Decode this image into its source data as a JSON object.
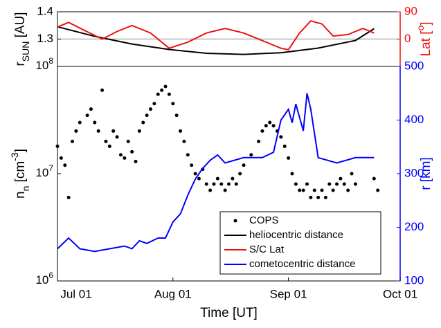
{
  "chart_data": [
    {
      "type": "line",
      "xlim": [
        0,
        92
      ],
      "ylim": [
        1.2,
        1.4
      ],
      "yticks": [
        1.3,
        1.4
      ],
      "y2lim": [
        -90,
        90
      ],
      "y2ticks": [
        0,
        90
      ],
      "y_label": {
        "text": "r",
        "sub": "SUN",
        "rest": " [AU]"
      },
      "y2_label": {
        "text": "Lat [",
        "sup": "o",
        "rest": "]"
      },
      "reference_line": 1.3,
      "series": [
        {
          "name": "heliocentric distance",
          "color": "#000000",
          "x": [
            0,
            10,
            20,
            30,
            40,
            50,
            60,
            70,
            80,
            85
          ],
          "values": [
            1.345,
            1.31,
            1.282,
            1.262,
            1.248,
            1.244,
            1.25,
            1.267,
            1.295,
            1.338
          ]
        },
        {
          "name": "S/C Lat",
          "color": "#ee1111",
          "axis": "y2",
          "x": [
            0,
            3,
            7,
            12,
            16,
            20,
            25,
            30,
            35,
            40,
            45,
            50,
            55,
            60,
            62,
            65,
            68,
            71,
            74,
            78,
            82,
            85
          ],
          "values": [
            40,
            55,
            30,
            0,
            25,
            45,
            20,
            -30,
            -10,
            20,
            35,
            20,
            -5,
            -30,
            -35,
            20,
            60,
            50,
            10,
            15,
            35,
            20
          ]
        }
      ]
    },
    {
      "type": "scatter",
      "xlim": [
        0,
        92
      ],
      "xticks": [
        {
          "value": 0,
          "label": "Jul 01"
        },
        {
          "value": 31,
          "label": "Aug 01"
        },
        {
          "value": 62,
          "label": "Sep 01"
        },
        {
          "value": 92,
          "label": "Oct 01"
        }
      ],
      "x_label": "Time [UT]",
      "log_y": true,
      "ylim": [
        1000000,
        100000000
      ],
      "yticks": [
        {
          "value": 1000000,
          "label": "10",
          "exponent": "6"
        },
        {
          "value": 10000000,
          "label": "10",
          "exponent": "7"
        },
        {
          "value": 100000000,
          "label": "10",
          "exponent": "8"
        }
      ],
      "y2lim": [
        100,
        500
      ],
      "y2ticks": [
        100,
        200,
        300,
        400,
        500
      ],
      "y_label": {
        "text": "n",
        "sub": "n",
        "rest": " [cm",
        "sup": "-3",
        "end": "]"
      },
      "y2_label": "r [km]",
      "series": [
        {
          "name": "COPS",
          "color": "#000000",
          "x": [
            0,
            1,
            2,
            3,
            4,
            5,
            6,
            8,
            9,
            10,
            11,
            12,
            13,
            14,
            15,
            16,
            17,
            18,
            19,
            20,
            21,
            22,
            23,
            24,
            25,
            26,
            27,
            28,
            29,
            30,
            31,
            32,
            33,
            34,
            35,
            36,
            37,
            38,
            39,
            40,
            41,
            42,
            43,
            44,
            45,
            46,
            47,
            48,
            49,
            50,
            52,
            54,
            55,
            56,
            57,
            58,
            59,
            60,
            61,
            62,
            63,
            64,
            65,
            66,
            67,
            68,
            69,
            70,
            71,
            72,
            73,
            74,
            75,
            76,
            77,
            78,
            79,
            80,
            85,
            86
          ],
          "values": [
            18000000.0,
            14000000.0,
            12000000.0,
            6000000.0,
            20000000.0,
            25000000.0,
            30000000.0,
            35000000.0,
            40000000.0,
            30000000.0,
            25000000.0,
            60000000.0,
            20000000.0,
            18000000.0,
            25000000.0,
            22000000.0,
            15000000.0,
            14000000.0,
            20000000.0,
            16000000.0,
            13000000.0,
            25000000.0,
            30000000.0,
            35000000.0,
            40000000.0,
            45000000.0,
            55000000.0,
            60000000.0,
            65000000.0,
            55000000.0,
            45000000.0,
            35000000.0,
            25000000.0,
            20000000.0,
            15000000.0,
            12000000.0,
            10000000.0,
            9000000.0,
            11000000.0,
            8000000.0,
            7000000.0,
            8000000.0,
            9000000.0,
            8000000.0,
            7000000.0,
            8000000.0,
            9000000.0,
            8000000.0,
            10000000.0,
            12000000.0,
            15000000.0,
            20000000.0,
            25000000.0,
            28000000.0,
            30000000.0,
            28000000.0,
            25000000.0,
            22000000.0,
            18000000.0,
            14000000.0,
            10000000.0,
            8000000.0,
            7000000.0,
            7000000.0,
            8000000.0,
            6000000.0,
            7000000.0,
            6000000.0,
            7000000.0,
            6000000.0,
            8000000.0,
            7000000.0,
            8000000.0,
            9000000.0,
            8000000.0,
            7000000.0,
            10000000.0,
            8000000.0,
            9000000.0,
            7000000.0
          ]
        },
        {
          "name": "cometocentric distance",
          "color": "#0000ff",
          "axis": "y2",
          "x": [
            0,
            3,
            6,
            10,
            14,
            18,
            20,
            22,
            24,
            27,
            29,
            31,
            33,
            35,
            37,
            39,
            41,
            43,
            45,
            50,
            55,
            58,
            60,
            62,
            63,
            64,
            66,
            67,
            68,
            70,
            75,
            80,
            85
          ],
          "values": [
            160,
            180,
            160,
            155,
            160,
            165,
            160,
            175,
            170,
            180,
            180,
            210,
            225,
            260,
            290,
            310,
            325,
            335,
            320,
            330,
            330,
            340,
            400,
            420,
            395,
            430,
            380,
            450,
            420,
            330,
            320,
            330,
            330
          ]
        }
      ]
    }
  ]
}
